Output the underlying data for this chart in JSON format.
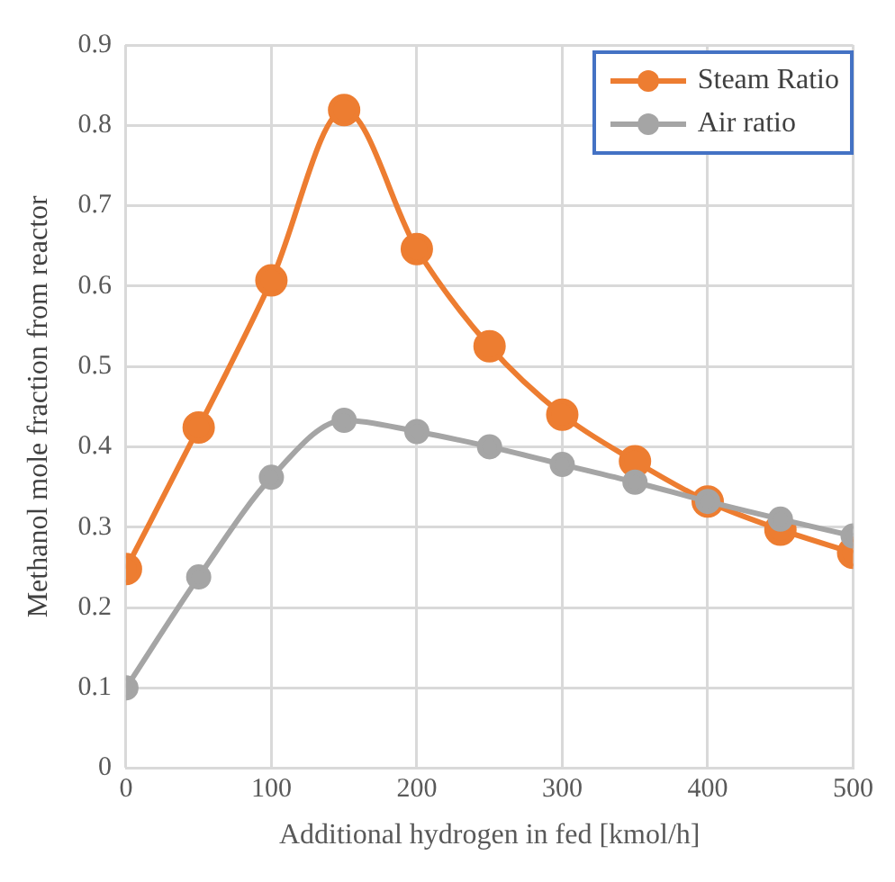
{
  "chart_data": {
    "type": "line",
    "xlabel": "Additional hydrogen in fed [kmol/h]",
    "ylabel": "Methanol mole fraction from reactor",
    "x": [
      0,
      50,
      100,
      150,
      200,
      250,
      300,
      350,
      400,
      450,
      500
    ],
    "series": [
      {
        "name": "Steam Ratio",
        "color": "#ed7d31",
        "values": [
          0.248,
          0.424,
          0.607,
          0.819,
          0.646,
          0.525,
          0.44,
          0.382,
          0.332,
          0.297,
          0.268
        ]
      },
      {
        "name": "Air ratio",
        "color": "#a5a5a5",
        "values": [
          0.1,
          0.238,
          0.362,
          0.433,
          0.419,
          0.4,
          0.378,
          0.356,
          0.332,
          0.31,
          0.289
        ]
      }
    ],
    "xlim": [
      0,
      500
    ],
    "xticks": [
      0,
      100,
      200,
      300,
      400,
      500
    ],
    "ylim": [
      0,
      0.9
    ],
    "yticks": [
      0,
      0.1,
      0.2,
      0.3,
      0.4,
      0.5,
      0.6,
      0.7,
      0.8,
      0.9
    ],
    "grid": true,
    "legend": "top right",
    "marker": "circle",
    "line_style": "solid"
  }
}
